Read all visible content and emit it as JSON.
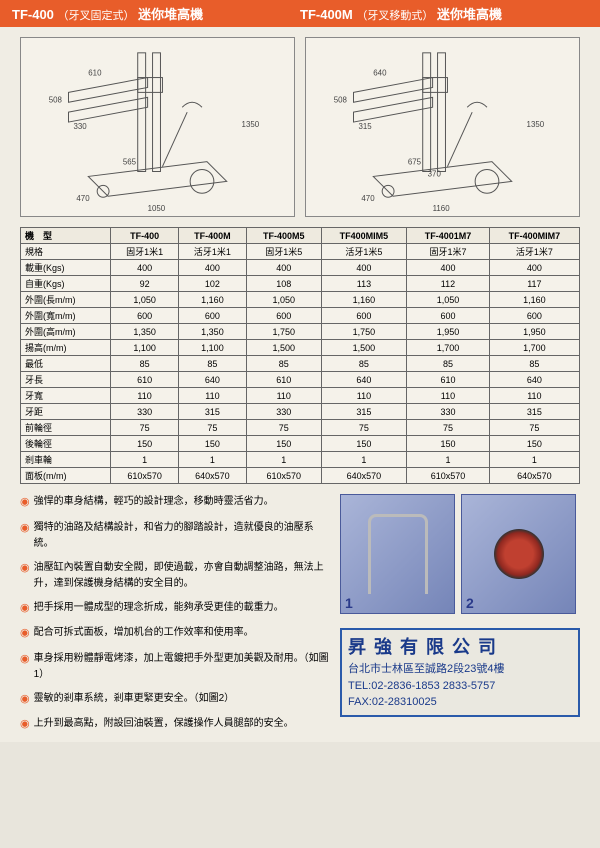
{
  "header": {
    "left_model": "TF-400",
    "left_sub": "（牙叉固定式）",
    "left_name": "迷你堆高機",
    "right_model": "TF-400M",
    "right_sub": "（牙叉移動式）",
    "right_name": "迷你堆高機"
  },
  "diagram_left": {
    "dims": {
      "d610": "610",
      "d508": "508",
      "d330": "330",
      "d565": "565",
      "d470": "470",
      "d1050": "1050",
      "d1350": "1350"
    }
  },
  "diagram_right": {
    "dims": {
      "d640": "640",
      "d508": "508",
      "d315": "315",
      "d675": "675",
      "d470": "470",
      "d1160": "1160",
      "d1350": "1350",
      "d370": "370"
    }
  },
  "table": {
    "header": [
      "機　型",
      "TF-400",
      "TF-400M",
      "TF-400M5",
      "TF400MIM5",
      "TF-4001M7",
      "TF-400MIM7"
    ],
    "rows": [
      [
        "規格",
        "固牙1米1",
        "活牙1米1",
        "固牙1米5",
        "活牙1米5",
        "固牙1米7",
        "活牙1米7"
      ],
      [
        "載重(Kgs)",
        "400",
        "400",
        "400",
        "400",
        "400",
        "400"
      ],
      [
        "自重(Kgs)",
        "92",
        "102",
        "108",
        "113",
        "112",
        "117"
      ],
      [
        "外圍(長m/m)",
        "1,050",
        "1,160",
        "1,050",
        "1,160",
        "1,050",
        "1,160"
      ],
      [
        "外圍(寬m/m)",
        "600",
        "600",
        "600",
        "600",
        "600",
        "600"
      ],
      [
        "外圍(高m/m)",
        "1,350",
        "1,350",
        "1,750",
        "1,750",
        "1,950",
        "1,950"
      ],
      [
        "揚高(m/m)",
        "1,100",
        "1,100",
        "1,500",
        "1,500",
        "1,700",
        "1,700"
      ],
      [
        "最低",
        "85",
        "85",
        "85",
        "85",
        "85",
        "85"
      ],
      [
        "牙長",
        "610",
        "640",
        "610",
        "640",
        "610",
        "640"
      ],
      [
        "牙寬",
        "110",
        "110",
        "110",
        "110",
        "110",
        "110"
      ],
      [
        "牙距",
        "330",
        "315",
        "330",
        "315",
        "330",
        "315"
      ],
      [
        "前輪徑",
        "75",
        "75",
        "75",
        "75",
        "75",
        "75"
      ],
      [
        "後輪徑",
        "150",
        "150",
        "150",
        "150",
        "150",
        "150"
      ],
      [
        "剎車輪",
        "1",
        "1",
        "1",
        "1",
        "1",
        "1"
      ],
      [
        "面板(m/m)",
        "610x570",
        "640x570",
        "610x570",
        "640x570",
        "610x570",
        "640x570"
      ]
    ]
  },
  "features": [
    "強悍的車身結構，輕巧的設計理念，移動時靈活省力。",
    "獨特的油路及結構設計，和省力的腳踏設計，造就優良的油壓系統。",
    "油壓缸內裝置自動安全閥，即使過載，亦會自動調整油路，無法上升，達到保護機身結構的安全目的。",
    "把手採用一體成型的理念折成，能夠承受更佳的載重力。",
    "配合可拆式面板，增加机台的工作效率和使用率。",
    "車身採用粉體靜電烤漆，加上電鍍把手外型更加美觀及耐用。（如圖1）",
    "靈敏的剎車系統，剎車更緊更安全。（如圖2）",
    "上升到最高點，附設回油裝置，保護操作人員腿部的安全。"
  ],
  "images": {
    "num1": "1",
    "num2": "2"
  },
  "company": {
    "name": "昇強有限公司",
    "addr": "台北市士林區至誠路2段23號4樓",
    "tel": "TEL:02-2836-1853 2833-5757",
    "fax": "FAX:02-28310025"
  },
  "colors": {
    "accent": "#e85d2a",
    "border": "#666",
    "company_border": "#2a5aaa",
    "company_text": "#1a3a8a"
  }
}
